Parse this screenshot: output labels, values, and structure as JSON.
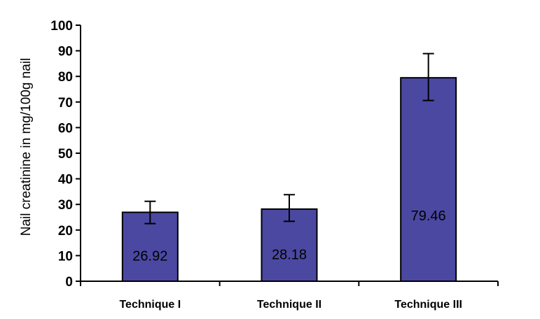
{
  "chart_data": {
    "type": "bar",
    "title": "",
    "xlabel": "",
    "ylabel": "Nail creatinine in mg/100g nail",
    "categories": [
      "Technique I",
      "Technique II",
      "Technique III"
    ],
    "values": [
      26.92,
      28.18,
      79.46
    ],
    "data_labels": [
      "26.92",
      "28.18",
      "79.46"
    ],
    "error_bars": [
      {
        "low": 22.5,
        "high": 31.2
      },
      {
        "low": 23.4,
        "high": 33.8
      },
      {
        "low": 70.6,
        "high": 88.9
      }
    ],
    "ylim": [
      0,
      100
    ],
    "yticks": [
      0,
      10,
      20,
      30,
      40,
      50,
      60,
      70,
      80,
      90,
      100
    ],
    "ytick_labels": [
      "0",
      "10",
      "20",
      "30",
      "40",
      "50",
      "60",
      "70",
      "80",
      "90",
      "100"
    ],
    "grid": false,
    "legend": "none",
    "colors": {
      "bar_fill": "#4b48a2",
      "bar_stroke": "#000000",
      "axis": "#000000",
      "background": "#ffffff"
    }
  }
}
